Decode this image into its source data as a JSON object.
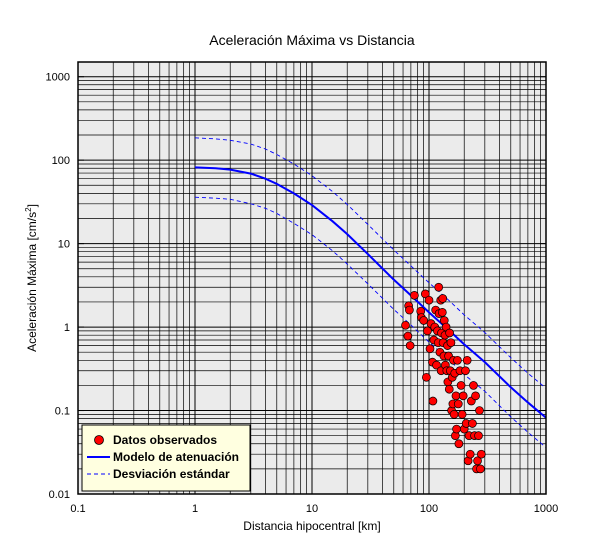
{
  "chart_data": {
    "type": "scatter",
    "title": "Aceleración Máxima vs Distancia",
    "xlabel": "Distancia hipocentral [km]",
    "ylabel_main": "Aceleración Máxima [cm/s",
    "ylabel_sup": "2",
    "ylabel_end": "]",
    "x_scale": "log",
    "y_scale": "log",
    "xlim": [
      0.1,
      1000
    ],
    "ylim": [
      0.01,
      1500
    ],
    "x_ticks": [
      {
        "value": 0.1,
        "label": "0.1"
      },
      {
        "value": 1,
        "label": "1"
      },
      {
        "value": 10,
        "label": "10"
      },
      {
        "value": 100,
        "label": "100"
      },
      {
        "value": 1000,
        "label": "1000"
      }
    ],
    "y_ticks": [
      {
        "value": 0.01,
        "label": "0.01"
      },
      {
        "value": 0.1,
        "label": "0.1"
      },
      {
        "value": 1,
        "label": "1"
      },
      {
        "value": 10,
        "label": "10"
      },
      {
        "value": 100,
        "label": "100"
      },
      {
        "value": 1000,
        "label": "1000"
      }
    ],
    "grid": true,
    "legend_position": "bottom-left",
    "colors": {
      "plot_background": "#ebebeb",
      "observed": "#ff0000",
      "model": "#0000ff",
      "deviation": "#0000ff",
      "legend_background": "#ffffe0"
    },
    "series": [
      {
        "name": "Datos observados",
        "kind": "points",
        "points": [
          [
            63,
            1.05
          ],
          [
            66,
            0.78
          ],
          [
            67,
            1.8
          ],
          [
            68,
            1.6
          ],
          [
            69,
            0.6
          ],
          [
            75,
            2.4
          ],
          [
            85,
            1.55
          ],
          [
            86,
            1.3
          ],
          [
            90,
            1.2
          ],
          [
            93,
            2.5
          ],
          [
            95,
            0.25
          ],
          [
            97,
            0.9
          ],
          [
            100,
            2.1
          ],
          [
            102,
            0.55
          ],
          [
            104,
            1.1
          ],
          [
            107,
            0.38
          ],
          [
            108,
            0.13
          ],
          [
            110,
            0.7
          ],
          [
            112,
            1.0
          ],
          [
            114,
            1.6
          ],
          [
            116,
            0.35
          ],
          [
            118,
            0.9
          ],
          [
            120,
            0.65
          ],
          [
            121,
            3.0
          ],
          [
            122,
            1.45
          ],
          [
            124,
            0.5
          ],
          [
            126,
            2.1
          ],
          [
            127,
            0.3
          ],
          [
            128,
            0.85
          ],
          [
            130,
            1.5
          ],
          [
            131,
            2.2
          ],
          [
            132,
            0.65
          ],
          [
            134,
            0.45
          ],
          [
            135,
            1.2
          ],
          [
            137,
            0.8
          ],
          [
            138,
            0.35
          ],
          [
            140,
            1.0
          ],
          [
            142,
            0.3
          ],
          [
            144,
            0.6
          ],
          [
            145,
            0.22
          ],
          [
            147,
            0.45
          ],
          [
            149,
            0.18
          ],
          [
            150,
            0.85
          ],
          [
            152,
            0.3
          ],
          [
            154,
            0.65
          ],
          [
            156,
            0.1
          ],
          [
            158,
            0.25
          ],
          [
            160,
            0.12
          ],
          [
            162,
            0.4
          ],
          [
            164,
            0.09
          ],
          [
            166,
            0.28
          ],
          [
            168,
            0.05
          ],
          [
            170,
            0.15
          ],
          [
            172,
            0.06
          ],
          [
            175,
            0.4
          ],
          [
            178,
            0.12
          ],
          [
            180,
            0.04
          ],
          [
            184,
            0.3
          ],
          [
            188,
            0.2
          ],
          [
            192,
            0.09
          ],
          [
            196,
            0.15
          ],
          [
            200,
            0.06
          ],
          [
            205,
            0.3
          ],
          [
            208,
            0.07
          ],
          [
            212,
            0.4
          ],
          [
            216,
            0.025
          ],
          [
            220,
            0.05
          ],
          [
            225,
            0.03
          ],
          [
            230,
            0.13
          ],
          [
            235,
            0.07
          ],
          [
            240,
            0.2
          ],
          [
            245,
            0.05
          ],
          [
            250,
            0.15
          ],
          [
            255,
            0.02
          ],
          [
            260,
            0.025
          ],
          [
            265,
            0.05
          ],
          [
            270,
            0.1
          ],
          [
            275,
            0.02
          ],
          [
            280,
            0.03
          ]
        ]
      },
      {
        "name": "Modelo de atenuación",
        "kind": "line",
        "x": [
          1,
          1.5,
          2,
          3,
          4,
          5,
          7,
          10,
          15,
          20,
          30,
          50,
          70,
          100,
          150,
          200,
          300,
          500,
          700,
          1000
        ],
        "y": [
          82,
          80,
          77,
          69,
          60,
          52,
          40,
          29,
          18.5,
          13,
          7.5,
          3.7,
          2.4,
          1.5,
          0.9,
          0.62,
          0.38,
          0.19,
          0.125,
          0.082
        ]
      },
      {
        "name": "Desviación estándar",
        "kind": "band",
        "x": [
          1,
          1.5,
          2,
          3,
          4,
          5,
          7,
          10,
          15,
          20,
          30,
          50,
          70,
          100,
          150,
          200,
          300,
          500,
          700,
          1000
        ],
        "upper": [
          185,
          180,
          173,
          156,
          136,
          117,
          90,
          65,
          42,
          29.5,
          17,
          8.4,
          5.4,
          3.4,
          2.05,
          1.4,
          0.86,
          0.43,
          0.28,
          0.185
        ],
        "lower": [
          36,
          35,
          34,
          30,
          26.5,
          23,
          17.5,
          12.8,
          8.2,
          5.7,
          3.3,
          1.63,
          1.06,
          0.66,
          0.4,
          0.27,
          0.17,
          0.084,
          0.055,
          0.036
        ]
      }
    ]
  }
}
